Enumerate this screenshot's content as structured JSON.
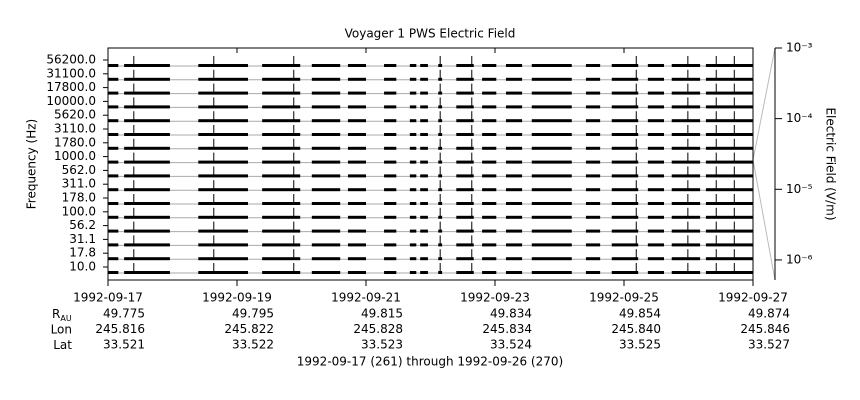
{
  "chart_data": {
    "type": "strip",
    "title": "Voyager 1 PWS Electric Field",
    "ylabel": "Frequency (Hz)",
    "y2label": "Electric Field (V/m)",
    "categories": [
      "56200.0",
      "31100.0",
      "17800.0",
      "10000.0",
      "5620.0",
      "3110.0",
      "1780.0",
      "1000.0",
      "562.0",
      "311.0",
      "178.0",
      "100.0",
      "56.2",
      "31.1",
      "17.8",
      "10.0"
    ],
    "xlim": [
      261,
      271
    ],
    "xticks": [
      {
        "value": 261,
        "label": "1992-09-17"
      },
      {
        "value": 263,
        "label": "1992-09-19"
      },
      {
        "value": 265,
        "label": "1992-09-21"
      },
      {
        "value": 267,
        "label": "1992-09-23"
      },
      {
        "value": 269,
        "label": "1992-09-25"
      },
      {
        "value": 271,
        "label": "1992-09-27"
      }
    ],
    "spans": [
      [
        261.0,
        261.16
      ],
      [
        261.25,
        261.96
      ],
      [
        262.4,
        263.17
      ],
      [
        263.39,
        263.98
      ],
      [
        264.16,
        264.6
      ],
      [
        264.72,
        265.0
      ],
      [
        265.28,
        265.47
      ],
      [
        265.68,
        265.78
      ],
      [
        265.84,
        265.96
      ],
      [
        266.12,
        266.18
      ],
      [
        266.4,
        266.67
      ],
      [
        266.8,
        267.02
      ],
      [
        267.17,
        267.42
      ],
      [
        267.57,
        268.19
      ],
      [
        268.41,
        268.63
      ],
      [
        268.81,
        269.22
      ],
      [
        269.37,
        269.62
      ],
      [
        269.74,
        270.18
      ],
      [
        270.27,
        271.0
      ]
    ],
    "events": [
      261.4,
      262.64,
      263.88,
      266.15,
      266.64,
      269.19,
      269.99,
      270.43,
      270.71
    ],
    "y2log": true,
    "y2lim": [
      5.2e-07,
      0.001
    ],
    "y2ticks": [
      {
        "value": 0.001,
        "label": "10⁻³"
      },
      {
        "value": 0.0001,
        "label": "10⁻⁴"
      },
      {
        "value": 1e-05,
        "label": "10⁻⁵"
      },
      {
        "value": 1e-06,
        "label": "10⁻⁶"
      }
    ],
    "color": "#000000",
    "ephemeris": [
      {
        "label": "R",
        "sub": "AU",
        "values": [
          "49.775",
          "49.795",
          "49.815",
          "49.834",
          "49.854",
          "49.874"
        ]
      },
      {
        "label": "Lon",
        "values": [
          "245.816",
          "245.822",
          "245.828",
          "245.834",
          "245.840",
          "245.846"
        ]
      },
      {
        "label": "Lat",
        "values": [
          "33.521",
          "33.522",
          "33.523",
          "33.524",
          "33.525",
          "33.527"
        ]
      }
    ],
    "footer": "1992-09-17 (261) through 1992-09-26 (270)"
  }
}
